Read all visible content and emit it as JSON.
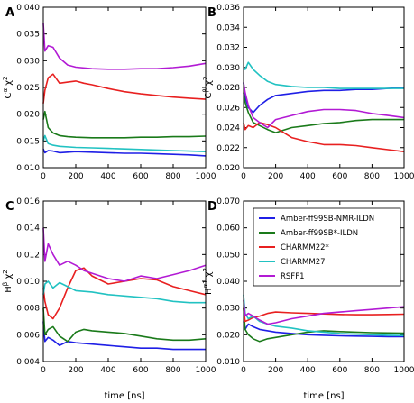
{
  "figure": {
    "xlabel": "time [ns]",
    "colors": {
      "Amber-ff99SB-NMR-ILDN": "#1f1fe6",
      "Amber-ff99SB*-ILDN": "#1a7a1a",
      "CHARMM22*": "#e82020",
      "CHARMM27": "#22c2c2",
      "RSFF1": "#b21ad4"
    },
    "legend_position": "top-right of panel D"
  },
  "chart_data": [
    {
      "type": "line",
      "panel": "A",
      "ylabel_main": "Cα χ",
      "ylabel_sup": "2",
      "xlim": [
        0,
        1000
      ],
      "ylim": [
        0.01,
        0.04
      ],
      "xticks": [
        "0",
        "200",
        "400",
        "600",
        "800",
        "1000"
      ],
      "yticks": [
        "0.010",
        "0.015",
        "0.020",
        "0.025",
        "0.030",
        "0.035",
        "0.040"
      ],
      "series": [
        {
          "name": "Amber-ff99SB-NMR-ILDN",
          "x": [
            0,
            10,
            30,
            60,
            100,
            200,
            300,
            400,
            500,
            600,
            700,
            800,
            900,
            1000
          ],
          "y": [
            0.0135,
            0.0128,
            0.0132,
            0.0131,
            0.0128,
            0.013,
            0.0129,
            0.0128,
            0.0127,
            0.0127,
            0.0126,
            0.0125,
            0.0124,
            0.0122
          ]
        },
        {
          "name": "Amber-ff99SB*-ILDN",
          "x": [
            0,
            10,
            30,
            60,
            100,
            150,
            200,
            300,
            400,
            500,
            600,
            700,
            800,
            900,
            1000
          ],
          "y": [
            0.019,
            0.0205,
            0.0175,
            0.0165,
            0.016,
            0.0158,
            0.0157,
            0.0156,
            0.0156,
            0.0156,
            0.0157,
            0.0157,
            0.0158,
            0.0158,
            0.0159
          ]
        },
        {
          "name": "CHARMM22*",
          "x": [
            0,
            10,
            30,
            60,
            100,
            150,
            200,
            250,
            300,
            400,
            500,
            600,
            700,
            800,
            900,
            1000
          ],
          "y": [
            0.022,
            0.0245,
            0.0268,
            0.0275,
            0.0258,
            0.026,
            0.0262,
            0.0258,
            0.0255,
            0.0248,
            0.0242,
            0.0238,
            0.0235,
            0.0232,
            0.023,
            0.0228
          ]
        },
        {
          "name": "CHARMM27",
          "x": [
            0,
            10,
            30,
            60,
            100,
            200,
            300,
            400,
            500,
            600,
            700,
            800,
            900,
            1000
          ],
          "y": [
            0.015,
            0.016,
            0.0145,
            0.0142,
            0.014,
            0.0138,
            0.0137,
            0.0136,
            0.0135,
            0.0134,
            0.0133,
            0.0132,
            0.0131,
            0.013
          ]
        },
        {
          "name": "RSFF1",
          "x": [
            0,
            10,
            30,
            60,
            100,
            150,
            200,
            300,
            400,
            500,
            600,
            700,
            800,
            900,
            1000
          ],
          "y": [
            0.037,
            0.0318,
            0.0328,
            0.0325,
            0.0305,
            0.0292,
            0.0288,
            0.0285,
            0.0284,
            0.0284,
            0.0285,
            0.0285,
            0.0287,
            0.029,
            0.0295
          ]
        }
      ]
    },
    {
      "type": "line",
      "panel": "B",
      "ylabel_main": "Cβ χ",
      "ylabel_sup": "2",
      "xlim": [
        0,
        1000
      ],
      "ylim": [
        0.02,
        0.036
      ],
      "xticks": [
        "0",
        "200",
        "400",
        "600",
        "800",
        "1000"
      ],
      "yticks": [
        "0.020",
        "0.022",
        "0.024",
        "0.026",
        "0.028",
        "0.030",
        "0.032",
        "0.034",
        "0.036"
      ],
      "series": [
        {
          "name": "Amber-ff99SB-NMR-ILDN",
          "x": [
            0,
            10,
            30,
            60,
            100,
            150,
            200,
            300,
            400,
            500,
            600,
            700,
            800,
            900,
            1000
          ],
          "y": [
            0.0285,
            0.027,
            0.026,
            0.0255,
            0.0262,
            0.0268,
            0.0272,
            0.0274,
            0.0276,
            0.0277,
            0.0277,
            0.0278,
            0.0278,
            0.0279,
            0.028
          ]
        },
        {
          "name": "Amber-ff99SB*-ILDN",
          "x": [
            0,
            10,
            30,
            60,
            100,
            150,
            200,
            300,
            400,
            500,
            600,
            700,
            800,
            900,
            1000
          ],
          "y": [
            0.0275,
            0.0265,
            0.0255,
            0.0245,
            0.0242,
            0.0238,
            0.0235,
            0.024,
            0.0242,
            0.0244,
            0.0245,
            0.0247,
            0.0248,
            0.0248,
            0.0248
          ]
        },
        {
          "name": "CHARMM22*",
          "x": [
            0,
            10,
            30,
            60,
            100,
            150,
            200,
            250,
            300,
            400,
            500,
            600,
            700,
            800,
            900,
            1000
          ],
          "y": [
            0.0245,
            0.0238,
            0.0242,
            0.024,
            0.0245,
            0.0243,
            0.024,
            0.0235,
            0.023,
            0.0226,
            0.0223,
            0.0223,
            0.0222,
            0.022,
            0.0218,
            0.0216
          ]
        },
        {
          "name": "CHARMM27",
          "x": [
            0,
            10,
            30,
            60,
            100,
            150,
            200,
            300,
            400,
            500,
            600,
            700,
            800,
            900,
            1000
          ],
          "y": [
            0.03,
            0.0298,
            0.0305,
            0.0298,
            0.0292,
            0.0286,
            0.0283,
            0.0281,
            0.028,
            0.028,
            0.0279,
            0.0279,
            0.0279,
            0.0279,
            0.0279
          ]
        },
        {
          "name": "RSFF1",
          "x": [
            0,
            10,
            30,
            60,
            100,
            150,
            200,
            300,
            400,
            500,
            600,
            700,
            800,
            900,
            1000
          ],
          "y": [
            0.0285,
            0.0275,
            0.0262,
            0.025,
            0.0245,
            0.024,
            0.0248,
            0.0252,
            0.0256,
            0.0258,
            0.0258,
            0.0257,
            0.0254,
            0.0252,
            0.025
          ]
        }
      ]
    },
    {
      "type": "line",
      "panel": "C",
      "ylabel_main": "Hβ χ",
      "ylabel_sup": "2",
      "xlim": [
        0,
        1000
      ],
      "ylim": [
        0.004,
        0.016
      ],
      "xticks": [
        "0",
        "200",
        "400",
        "600",
        "800",
        "1000"
      ],
      "yticks": [
        "0.004",
        "0.006",
        "0.008",
        "0.010",
        "0.012",
        "0.014",
        "0.016"
      ],
      "series": [
        {
          "name": "Amber-ff99SB-NMR-ILDN",
          "x": [
            0,
            10,
            30,
            60,
            100,
            150,
            200,
            300,
            400,
            500,
            600,
            700,
            800,
            900,
            1000
          ],
          "y": [
            0.007,
            0.0055,
            0.0058,
            0.0056,
            0.0052,
            0.0055,
            0.0054,
            0.0053,
            0.0052,
            0.0051,
            0.005,
            0.005,
            0.0049,
            0.0049,
            0.0049
          ]
        },
        {
          "name": "Amber-ff99SB*-ILDN",
          "x": [
            0,
            10,
            30,
            60,
            100,
            150,
            200,
            250,
            300,
            400,
            500,
            600,
            700,
            800,
            900,
            1000
          ],
          "y": [
            0.008,
            0.006,
            0.0064,
            0.0066,
            0.0059,
            0.0055,
            0.0062,
            0.0064,
            0.0063,
            0.0062,
            0.0061,
            0.0059,
            0.0057,
            0.0056,
            0.0056,
            0.0057
          ]
        },
        {
          "name": "CHARMM22*",
          "x": [
            0,
            10,
            30,
            60,
            100,
            150,
            200,
            250,
            300,
            400,
            500,
            600,
            700,
            800,
            900,
            1000
          ],
          "y": [
            0.0095,
            0.0085,
            0.0075,
            0.0072,
            0.008,
            0.0095,
            0.0108,
            0.011,
            0.0104,
            0.0098,
            0.01,
            0.0102,
            0.0101,
            0.0096,
            0.0093,
            0.009
          ]
        },
        {
          "name": "CHARMM27",
          "x": [
            0,
            10,
            30,
            60,
            100,
            150,
            200,
            300,
            400,
            500,
            600,
            700,
            800,
            900,
            1000
          ],
          "y": [
            0.009,
            0.0098,
            0.01,
            0.0095,
            0.0099,
            0.0096,
            0.0093,
            0.0092,
            0.009,
            0.0089,
            0.0088,
            0.0087,
            0.0085,
            0.0084,
            0.0084
          ]
        },
        {
          "name": "RSFF1",
          "x": [
            0,
            10,
            30,
            60,
            100,
            150,
            200,
            250,
            300,
            400,
            500,
            600,
            700,
            800,
            900,
            1000
          ],
          "y": [
            0.014,
            0.0115,
            0.0128,
            0.012,
            0.0112,
            0.0115,
            0.0112,
            0.0108,
            0.0106,
            0.0102,
            0.01,
            0.0104,
            0.0102,
            0.0105,
            0.0108,
            0.0112
          ]
        }
      ]
    },
    {
      "type": "line",
      "panel": "D",
      "ylabel_main": "Hα1 χ",
      "ylabel_sup": "2",
      "xlim": [
        0,
        1000
      ],
      "ylim": [
        0.01,
        0.07
      ],
      "xticks": [
        "0",
        "200",
        "400",
        "600",
        "800",
        "1000"
      ],
      "yticks": [
        "0.010",
        "0.020",
        "0.030",
        "0.040",
        "0.050",
        "0.060",
        "0.070"
      ],
      "series": [
        {
          "name": "Amber-ff99SB-NMR-ILDN",
          "x": [
            0,
            10,
            30,
            60,
            100,
            150,
            200,
            300,
            400,
            500,
            600,
            700,
            800,
            900,
            1000
          ],
          "y": [
            0.025,
            0.022,
            0.024,
            0.023,
            0.022,
            0.0215,
            0.021,
            0.0205,
            0.02,
            0.0198,
            0.0196,
            0.0195,
            0.0194,
            0.0193,
            0.0193
          ]
        },
        {
          "name": "Amber-ff99SB*-ILDN",
          "x": [
            0,
            10,
            30,
            60,
            100,
            150,
            200,
            300,
            400,
            500,
            600,
            700,
            800,
            900,
            1000
          ],
          "y": [
            0.03,
            0.022,
            0.02,
            0.0185,
            0.0175,
            0.0185,
            0.019,
            0.02,
            0.021,
            0.0215,
            0.0212,
            0.021,
            0.0208,
            0.0207,
            0.0206
          ]
        },
        {
          "name": "CHARMM22*",
          "x": [
            0,
            10,
            30,
            60,
            100,
            150,
            200,
            300,
            400,
            500,
            600,
            700,
            800,
            900,
            1000
          ],
          "y": [
            0.03,
            0.025,
            0.0255,
            0.0265,
            0.027,
            0.028,
            0.0285,
            0.0282,
            0.028,
            0.0278,
            0.0276,
            0.0275,
            0.0275,
            0.0276,
            0.0277
          ]
        },
        {
          "name": "CHARMM27",
          "x": [
            0,
            10,
            30,
            60,
            100,
            150,
            200,
            300,
            400,
            500,
            600,
            700,
            800,
            900,
            1000
          ],
          "y": [
            0.035,
            0.028,
            0.026,
            0.027,
            0.025,
            0.024,
            0.0232,
            0.0225,
            0.0215,
            0.021,
            0.0205,
            0.0202,
            0.02,
            0.0198,
            0.0197
          ]
        },
        {
          "name": "RSFF1",
          "x": [
            0,
            10,
            30,
            60,
            100,
            150,
            200,
            300,
            400,
            500,
            600,
            700,
            800,
            900,
            1000
          ],
          "y": [
            0.033,
            0.027,
            0.028,
            0.027,
            0.0255,
            0.024,
            0.0245,
            0.026,
            0.027,
            0.028,
            0.0285,
            0.029,
            0.0295,
            0.03,
            0.0305
          ]
        }
      ]
    }
  ]
}
